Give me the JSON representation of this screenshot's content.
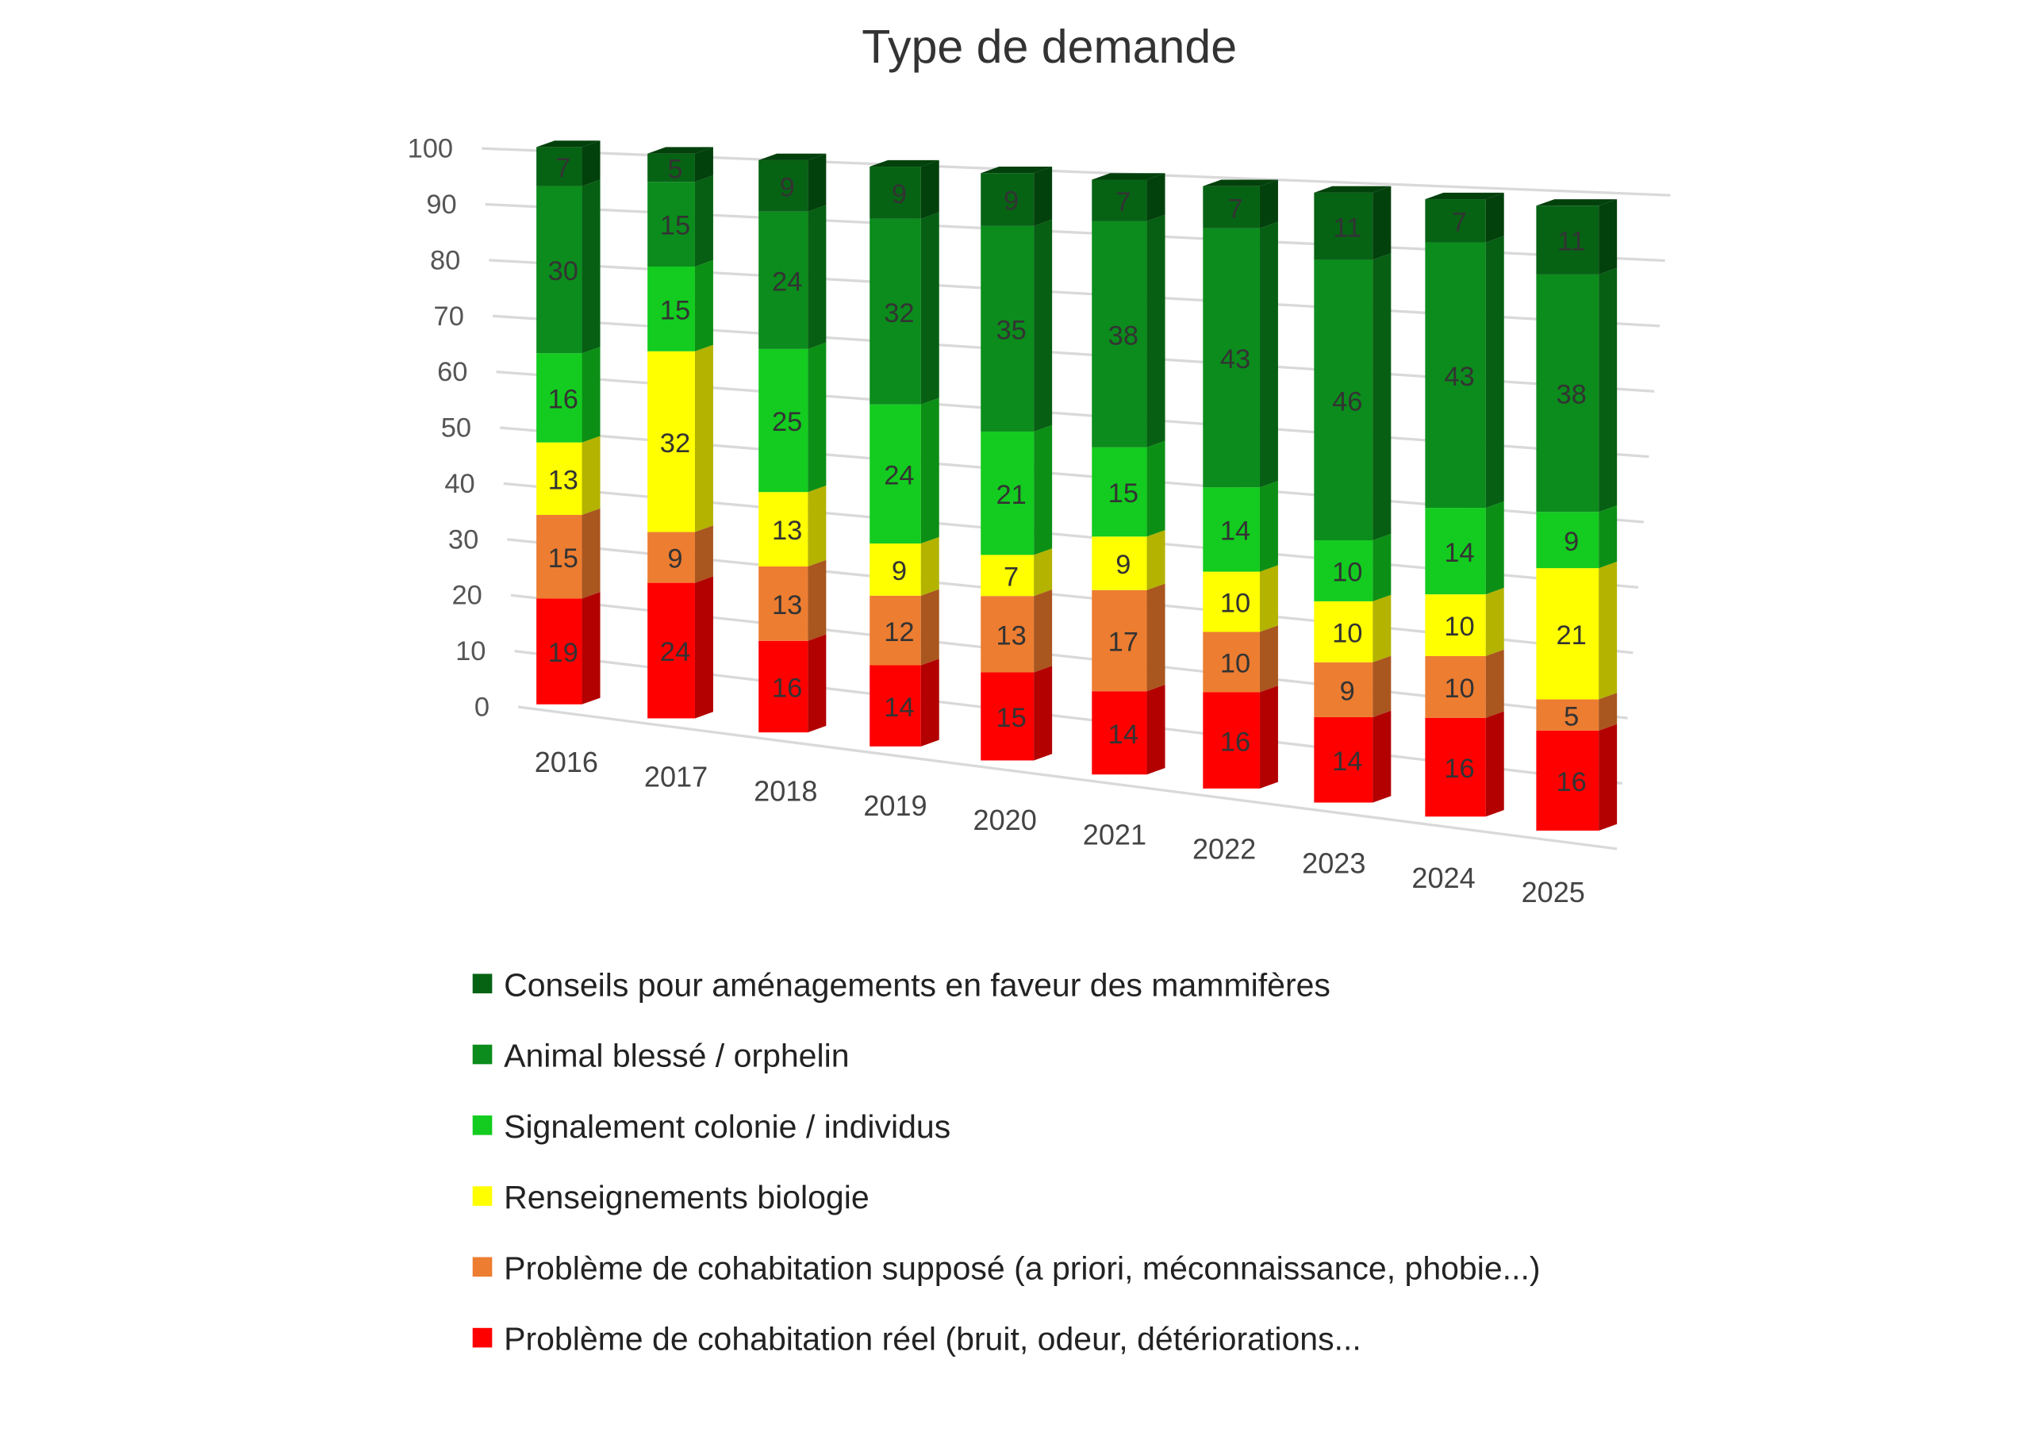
{
  "chart_data": {
    "type": "bar",
    "stacked": true,
    "three_d": true,
    "title": "Type de demande",
    "xlabel": "",
    "ylabel": "",
    "ylim": [
      0,
      100
    ],
    "yticks": [
      "0",
      "10",
      "20",
      "30",
      "40",
      "50",
      "60",
      "70",
      "80",
      "90",
      "100"
    ],
    "categories": [
      "2016",
      "2017",
      "2018",
      "2019",
      "2020",
      "2021",
      "2022",
      "2023",
      "2024",
      "2025"
    ],
    "grid": true,
    "legend_position": "bottom",
    "series": [
      {
        "name": "Problème de cohabitation réel (bruit, odeur, détériorations...",
        "color": "#ff0000",
        "side": "#b30000",
        "values": [
          19,
          24,
          16,
          14,
          15,
          14,
          16,
          14,
          16,
          16
        ]
      },
      {
        "name": "Problème de cohabitation supposé (a priori, méconnaissance, phobie...)",
        "color": "#ed7d31",
        "side": "#a9561f",
        "values": [
          15,
          9,
          13,
          12,
          13,
          17,
          10,
          9,
          10,
          5
        ]
      },
      {
        "name": "Renseignements biologie",
        "color": "#ffff00",
        "side": "#b3b300",
        "values": [
          13,
          32,
          13,
          9,
          7,
          9,
          10,
          10,
          10,
          21
        ]
      },
      {
        "name": "Signalement colonie / individus",
        "color": "#13cc1f",
        "side": "#0c8f15",
        "values": [
          16,
          15,
          25,
          24,
          21,
          15,
          14,
          10,
          14,
          9
        ]
      },
      {
        "name": "Animal blessé / orphelin",
        "color": "#0b8c1c",
        "side": "#065f12",
        "values": [
          30,
          15,
          24,
          32,
          35,
          38,
          43,
          46,
          43,
          38
        ]
      },
      {
        "name": "Conseils pour aménagements en faveur des mammifères",
        "color": "#066314",
        "side": "#03410c",
        "values": [
          7,
          5,
          9,
          9,
          9,
          7,
          7,
          11,
          7,
          11
        ]
      }
    ]
  }
}
